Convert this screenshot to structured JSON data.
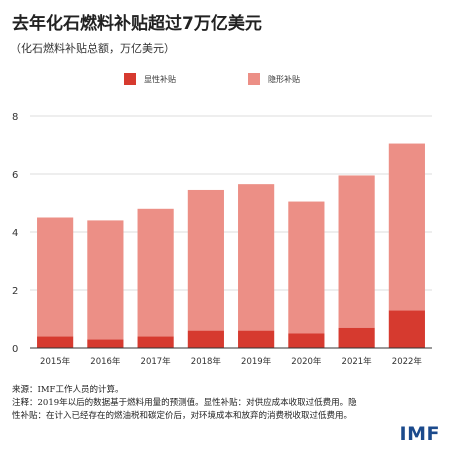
{
  "header": {
    "title": "去年化石燃料补贴超过7万亿美元",
    "subtitle": "（化石燃料补贴总额，万亿美元）"
  },
  "colors": {
    "explicit": "#d63a2f",
    "implicit": "#ec8f86",
    "grid": "#dddddd",
    "axis": "#333333"
  },
  "chart_data": {
    "type": "bar",
    "stacked": true,
    "categories": [
      "2015年",
      "2016年",
      "2017年",
      "2018年",
      "2019年",
      "2020年",
      "2021年",
      "2022年"
    ],
    "series": [
      {
        "name": "显性补贴",
        "values": [
          0.4,
          0.3,
          0.4,
          0.6,
          0.6,
          0.5,
          0.7,
          1.3
        ]
      },
      {
        "name": "隐形补贴",
        "values": [
          4.1,
          4.1,
          4.4,
          4.85,
          5.05,
          4.55,
          5.25,
          5.75
        ]
      }
    ],
    "ylim": [
      0,
      8
    ],
    "yticks": [
      0,
      2,
      4,
      6,
      8
    ],
    "grid": true,
    "legend_position": "top"
  },
  "footer": {
    "source": "来源：IMF工作人员的计算。",
    "note_line1": "注释：2019年以后的数据基于燃料用量的预测值。显性补贴：对供应成本收取过低费用。隐",
    "note_line2": "性补贴：在计入已经存在的燃油税和碳定价后，对环境成本和放弃的消费税收取过低费用。",
    "logo_text": "IMF"
  }
}
